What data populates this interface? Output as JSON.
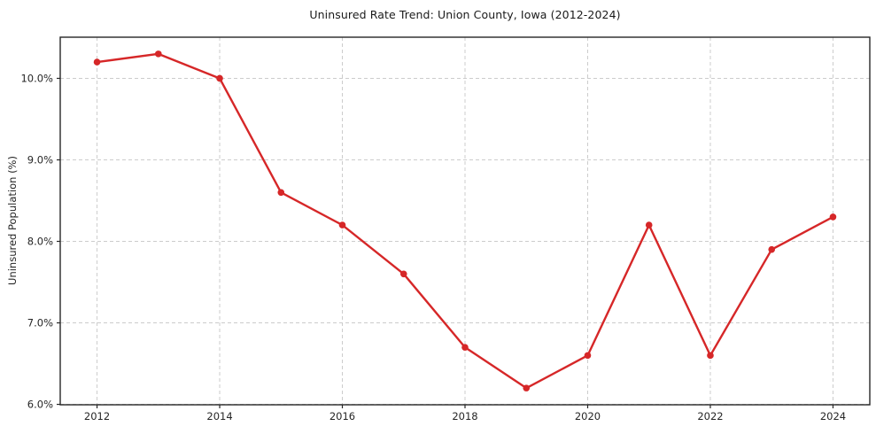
{
  "chart_data": {
    "type": "line",
    "title": "Uninsured Rate Trend: Union County, Iowa (2012-2024)",
    "xlabel": "",
    "ylabel": "Uninsured Population (%)",
    "x": [
      2012,
      2013,
      2014,
      2015,
      2016,
      2017,
      2018,
      2019,
      2020,
      2021,
      2022,
      2023,
      2024
    ],
    "series": [
      {
        "name": "Uninsured Rate",
        "values": [
          10.2,
          10.3,
          10.0,
          8.6,
          8.2,
          7.6,
          6.7,
          6.2,
          6.6,
          8.2,
          6.6,
          7.9,
          8.3
        ]
      }
    ],
    "xticks": [
      2012,
      2014,
      2016,
      2018,
      2020,
      2022,
      2024
    ],
    "yticks": [
      6.0,
      7.0,
      8.0,
      9.0,
      10.0
    ],
    "ytick_labels": [
      "6.0%",
      "7.0%",
      "8.0%",
      "9.0%",
      "10.0%"
    ],
    "xlim": [
      2011.4,
      2024.6
    ],
    "ylim": [
      5.995,
      10.505
    ],
    "grid": true,
    "grid_style": "dashed",
    "legend": false,
    "line_color": "#d62728",
    "marker": "circle",
    "grid_color": "#cccccc",
    "spine_color": "#262626",
    "text_color": "#262626",
    "background": "#ffffff"
  }
}
